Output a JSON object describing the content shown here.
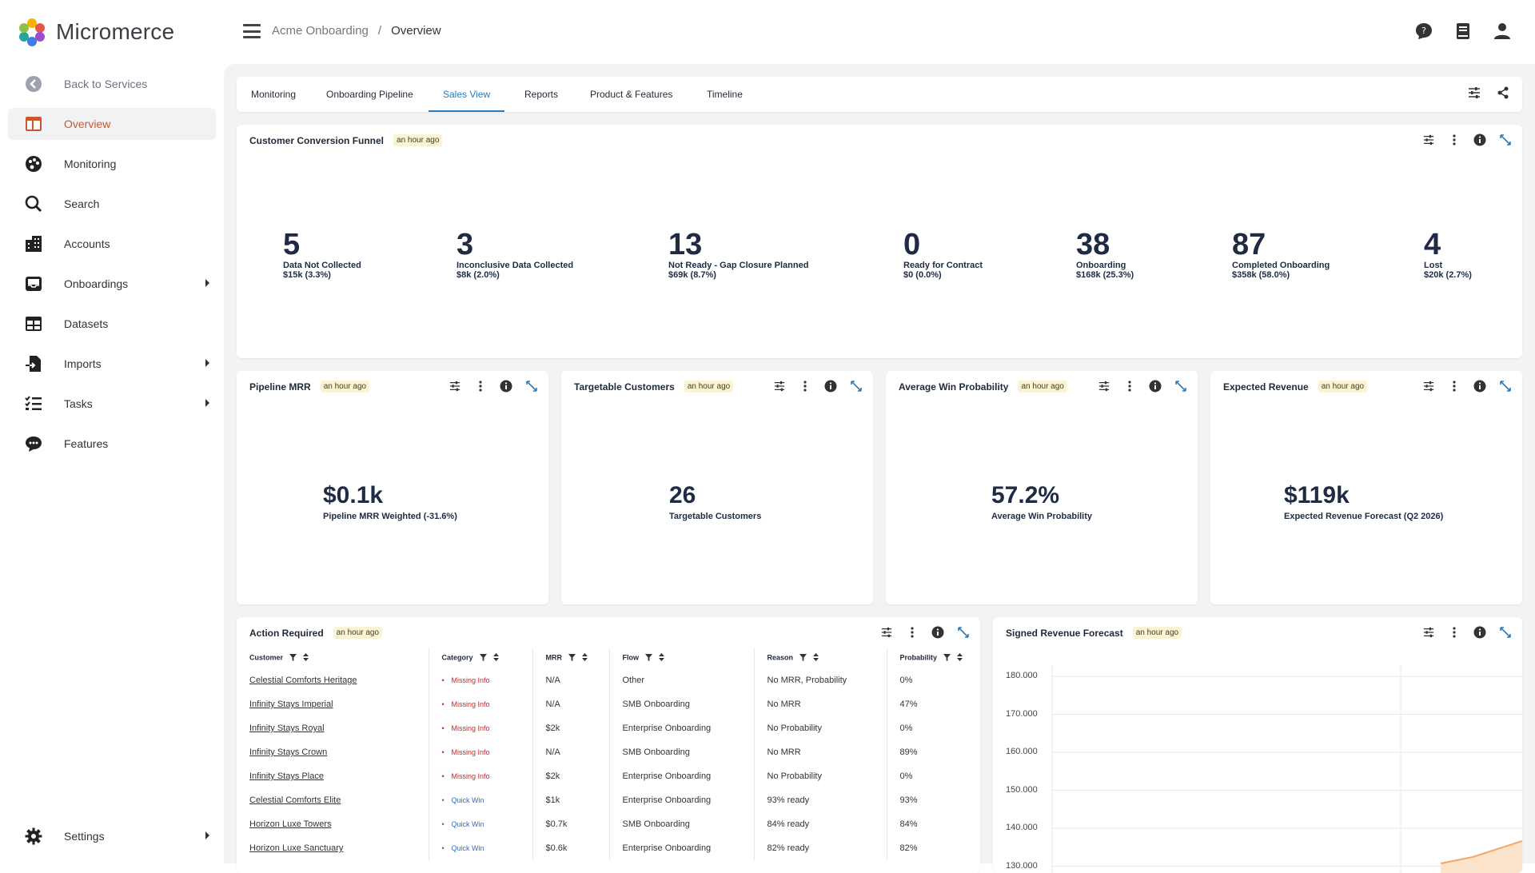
{
  "app": {
    "brand": "Micromerce"
  },
  "breadcrumb": {
    "parent": "Acme Onboarding",
    "sep": "/",
    "current": "Overview"
  },
  "sidebar": {
    "back": "Back to Services",
    "items": [
      {
        "label": "Overview",
        "icon": "overview-icon"
      },
      {
        "label": "Monitoring",
        "icon": "palette-icon"
      },
      {
        "label": "Search",
        "icon": "search-icon"
      },
      {
        "label": "Accounts",
        "icon": "building-icon"
      },
      {
        "label": "Onboardings",
        "icon": "inbox-icon"
      },
      {
        "label": "Datasets",
        "icon": "table-icon"
      },
      {
        "label": "Imports",
        "icon": "import-icon"
      },
      {
        "label": "Tasks",
        "icon": "checklist-icon"
      },
      {
        "label": "Features",
        "icon": "chat-icon"
      }
    ],
    "settings": "Settings"
  },
  "tabs": [
    "Monitoring",
    "Onboarding Pipeline",
    "Sales View",
    "Reports",
    "Product & Features",
    "Timeline"
  ],
  "funnel": {
    "title": "Customer Conversion Funnel",
    "badge": "an hour ago",
    "stages": [
      {
        "value": "5",
        "label": "Data Not Collected",
        "sub": "$15k (3.3%)"
      },
      {
        "value": "3",
        "label": "Inconclusive Data Collected",
        "sub": "$8k (2.0%)"
      },
      {
        "value": "13",
        "label": "Not Ready - Gap Closure Planned",
        "sub": "$69k (8.7%)"
      },
      {
        "value": "0",
        "label": "Ready for Contract",
        "sub": "$0 (0.0%)"
      },
      {
        "value": "38",
        "label": "Onboarding",
        "sub": "$168k (25.3%)"
      },
      {
        "value": "87",
        "label": "Completed Onboarding",
        "sub": "$358k (58.0%)"
      },
      {
        "value": "4",
        "label": "Lost",
        "sub": "$20k (2.7%)"
      }
    ]
  },
  "kpis": [
    {
      "title": "Pipeline MRR",
      "badge": "an hour ago",
      "value": "$0.1k",
      "label": "Pipeline MRR Weighted (-31.6%)"
    },
    {
      "title": "Targetable Customers",
      "badge": "an hour ago",
      "value": "26",
      "label": "Targetable Customers"
    },
    {
      "title": "Average Win Probability",
      "badge": "an hour ago",
      "value": "57.2%",
      "label": "Average Win Probability"
    },
    {
      "title": "Expected Revenue",
      "badge": "an hour ago",
      "value": "$119k",
      "label": "Expected Revenue Forecast (Q2 2026)"
    }
  ],
  "action": {
    "title": "Action Required",
    "badge": "an hour ago",
    "columns": [
      "Customer",
      "Category",
      "MRR",
      "Flow",
      "Reason",
      "Probability"
    ],
    "rows": [
      {
        "customer": "Celestial Comforts Heritage",
        "category": "Missing Info",
        "kind": "missing",
        "mrr": "N/A",
        "flow": "Other",
        "reason": "No MRR, Probability",
        "prob": "0%"
      },
      {
        "customer": "Infinity Stays Imperial",
        "category": "Missing Info",
        "kind": "missing",
        "mrr": "N/A",
        "flow": "SMB Onboarding",
        "reason": "No MRR",
        "prob": "47%"
      },
      {
        "customer": "Infinity Stays Royal",
        "category": "Missing Info",
        "kind": "missing",
        "mrr": "$2k",
        "flow": "Enterprise Onboarding",
        "reason": "No Probability",
        "prob": "0%"
      },
      {
        "customer": "Infinity Stays Crown",
        "category": "Missing Info",
        "kind": "missing",
        "mrr": "N/A",
        "flow": "SMB Onboarding",
        "reason": "No MRR",
        "prob": "89%"
      },
      {
        "customer": "Infinity Stays Place",
        "category": "Missing Info",
        "kind": "missing",
        "mrr": "$2k",
        "flow": "Enterprise Onboarding",
        "reason": "No Probability",
        "prob": "0%"
      },
      {
        "customer": "Celestial Comforts Elite",
        "category": "Quick Win",
        "kind": "quick",
        "mrr": "$1k",
        "flow": "Enterprise Onboarding",
        "reason": "93% ready",
        "prob": "93%"
      },
      {
        "customer": "Horizon Luxe Towers",
        "category": "Quick Win",
        "kind": "quick",
        "mrr": "$0.7k",
        "flow": "SMB Onboarding",
        "reason": "84% ready",
        "prob": "84%"
      },
      {
        "customer": "Horizon Luxe Sanctuary",
        "category": "Quick Win",
        "kind": "quick",
        "mrr": "$0.6k",
        "flow": "Enterprise Onboarding",
        "reason": "82% ready",
        "prob": "82%"
      }
    ]
  },
  "revenue": {
    "title": "Signed Revenue Forecast",
    "badge": "an hour ago",
    "yticks": [
      "180.000",
      "170.000",
      "160.000",
      "150.000",
      "140.000",
      "130.000"
    ]
  },
  "colors": {
    "accent": "#2b7bb9",
    "active_nav": "#c65a2e",
    "missing": "#cc2222",
    "quick": "#2b6cd6",
    "area": "#f0a868"
  }
}
